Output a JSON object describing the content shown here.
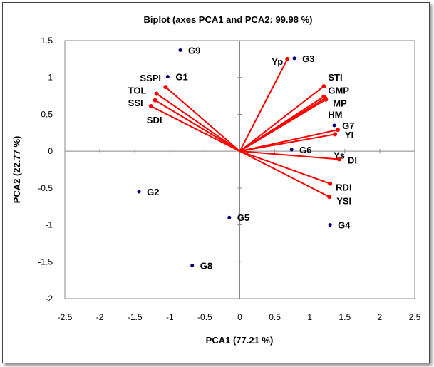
{
  "chart_data": {
    "type": "scatter",
    "title": "Biplot (axes PCA1 and PCA2: 99.98 %)",
    "xlabel": "PCA1 (77.21 %)",
    "ylabel": "PCA2 (22.77 %)",
    "xlim": [
      -2.5,
      2.5
    ],
    "ylim": [
      -2,
      1.5
    ],
    "xticks": [
      -2.5,
      -2,
      -1.5,
      -1,
      -0.5,
      0,
      0.5,
      1,
      1.5,
      2,
      2.5
    ],
    "yticks": [
      -2,
      -1.5,
      -1,
      -0.5,
      0,
      0.5,
      1,
      1.5
    ],
    "grid": false,
    "colors": {
      "observations": "#00007a",
      "variables": "#ff0000"
    },
    "observations": [
      {
        "label": "G9",
        "x": -0.85,
        "y": 1.37
      },
      {
        "label": "G1",
        "x": -1.03,
        "y": 1.01
      },
      {
        "label": "G3",
        "x": 0.78,
        "y": 1.26
      },
      {
        "label": "G7",
        "x": 1.35,
        "y": 0.35
      },
      {
        "label": "G6",
        "x": 0.74,
        "y": 0.02
      },
      {
        "label": "G2",
        "x": -1.44,
        "y": -0.55
      },
      {
        "label": "G5",
        "x": -0.15,
        "y": -0.9
      },
      {
        "label": "G4",
        "x": 1.29,
        "y": -1.0
      },
      {
        "label": "G8",
        "x": -0.68,
        "y": -1.55
      }
    ],
    "variables": [
      {
        "label": "Yp",
        "x": 0.68,
        "y": 1.25
      },
      {
        "label": "STI",
        "x": 1.2,
        "y": 0.88
      },
      {
        "label": "GMP",
        "x": 1.2,
        "y": 0.74
      },
      {
        "label": "MP",
        "x": 1.23,
        "y": 0.7
      },
      {
        "label": "HM",
        "x": 1.22,
        "y": 0.72
      },
      {
        "label": "YI",
        "x": 1.4,
        "y": 0.29
      },
      {
        "label": "Ys",
        "x": 1.36,
        "y": 0.23
      },
      {
        "label": "DI",
        "x": 1.42,
        "y": -0.11
      },
      {
        "label": "RDI",
        "x": 1.29,
        "y": -0.44
      },
      {
        "label": "YSI",
        "x": 1.28,
        "y": -0.62
      },
      {
        "label": "SSPI",
        "x": -1.06,
        "y": 0.87
      },
      {
        "label": "TOL",
        "x": -1.19,
        "y": 0.78
      },
      {
        "label": "SSI",
        "x": -1.21,
        "y": 0.69
      },
      {
        "label": "SDI",
        "x": -1.27,
        "y": 0.61
      }
    ]
  }
}
